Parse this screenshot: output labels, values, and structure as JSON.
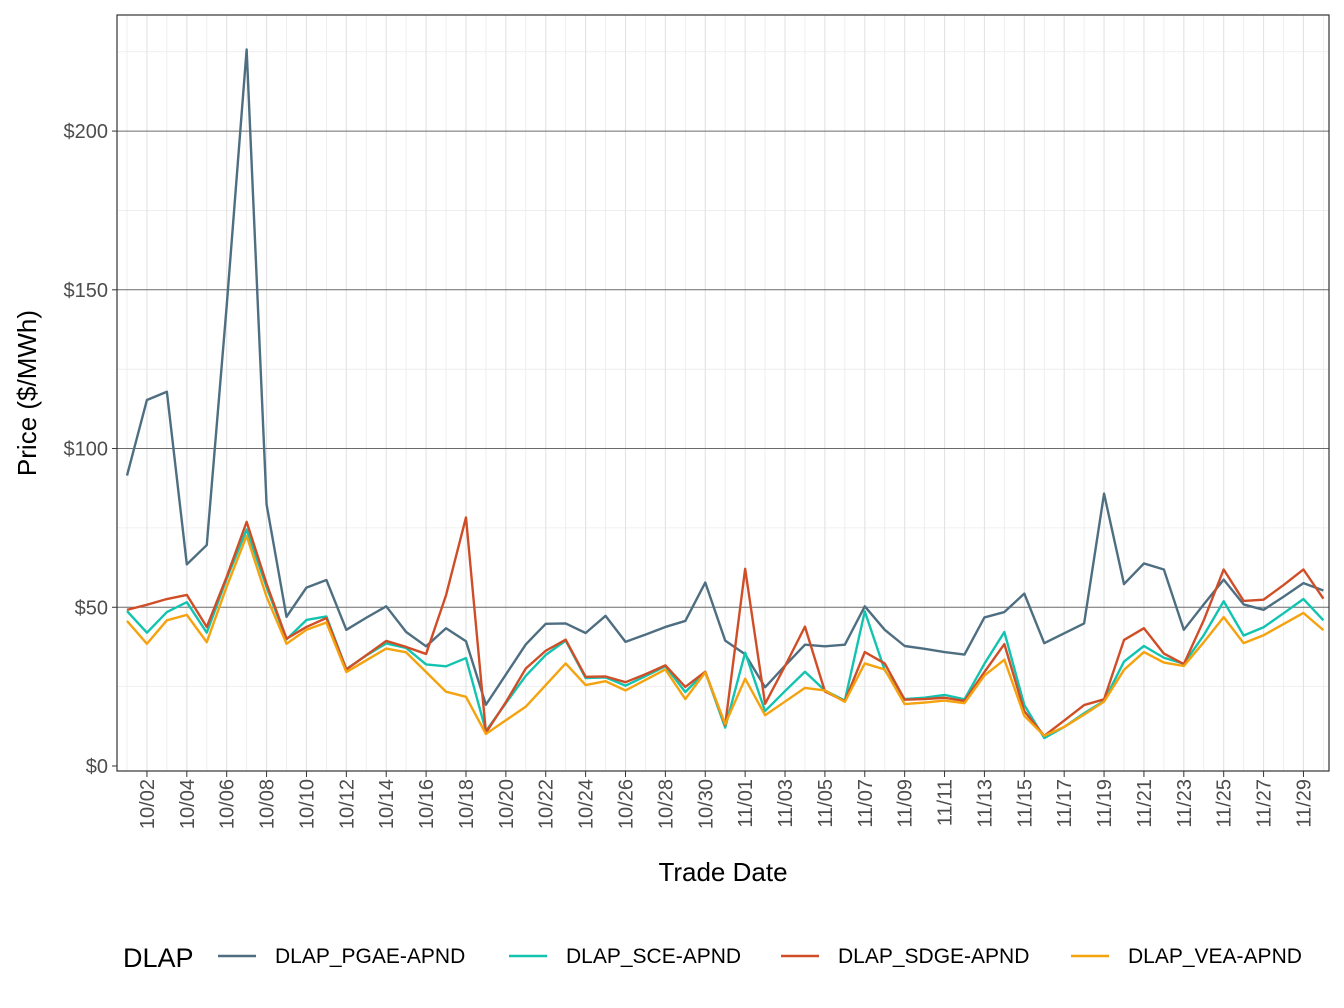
{
  "chart_data": {
    "type": "line",
    "xlabel": "Trade Date",
    "ylabel": "Price ($/MWh)",
    "x_start": "2023-10-01",
    "x_end": "2023-11-30",
    "ylim": [
      0,
      225
    ],
    "yticks": [
      0,
      50,
      100,
      150,
      200
    ],
    "ytick_labels": [
      "$0",
      "$50",
      "$100",
      "$150",
      "$200"
    ],
    "xtick_labels": [
      "10/02",
      "10/04",
      "10/06",
      "10/08",
      "10/10",
      "10/12",
      "10/14",
      "10/16",
      "10/18",
      "10/20",
      "10/22",
      "10/24",
      "10/26",
      "10/28",
      "10/30",
      "11/01",
      "11/03",
      "11/05",
      "11/07",
      "11/09",
      "11/11",
      "11/13",
      "11/15",
      "11/17",
      "11/19",
      "11/21",
      "11/23",
      "11/25",
      "11/27",
      "11/29"
    ],
    "grid": true,
    "legend": {
      "title": "DLAP",
      "position": "bottom"
    },
    "series": [
      {
        "name": "DLAP_PGAE-APND",
        "color": "#4e6e81",
        "values": [
          91.5,
          115.3,
          117.9,
          63.5,
          69.6,
          145,
          225.7,
          82.4,
          47,
          56.2,
          58.6,
          42.9,
          46.7,
          50.3,
          42.2,
          37.7,
          43.4,
          39.3,
          19.3,
          28.8,
          38.3,
          44.8,
          44.9,
          41.9,
          47.3,
          39.1,
          41.4,
          43.8,
          45.7,
          57.8,
          39.5,
          35.2,
          24.8,
          31.6,
          38.2,
          37.7,
          38.2,
          50.3,
          42.9,
          37.8,
          36.9,
          35.9,
          35.1,
          46.8,
          48.5,
          54.3,
          38.7,
          41.8,
          44.9,
          85.8,
          57.3,
          63.8,
          61.9,
          42.9,
          50.9,
          58.7,
          50.9,
          49.2,
          53.3,
          57.6,
          55.3
        ]
      },
      {
        "name": "DLAP_SCE-APND",
        "color": "#12c4b0",
        "values": [
          48.8,
          42,
          48.5,
          51.6,
          42,
          59,
          74.5,
          56.3,
          39.9,
          46,
          47.1,
          30.5,
          34.8,
          38.6,
          37.2,
          32,
          31.4,
          34,
          11,
          19.8,
          28.4,
          35,
          39.5,
          27.7,
          27.9,
          25.3,
          28.3,
          31.4,
          23.3,
          29.6,
          12.1,
          35.7,
          17.3,
          23.6,
          29.7,
          23.8,
          20.6,
          48.7,
          30.2,
          21.1,
          21.5,
          22.4,
          21,
          32.2,
          42.2,
          19.2,
          8.8,
          12.3,
          16.6,
          20.5,
          32.9,
          37.8,
          34.1,
          32.2,
          41.2,
          51.9,
          41.1,
          43.7,
          48.1,
          52.6,
          45.9
        ]
      },
      {
        "name": "DLAP_SDGE-APND",
        "color": "#d04e27",
        "values": [
          49.2,
          50.8,
          52.6,
          53.9,
          43.8,
          59.6,
          76.9,
          57.4,
          40.1,
          43.8,
          46.6,
          30.4,
          34.9,
          39.4,
          37.5,
          35.3,
          53.8,
          78.3,
          10.5,
          20.1,
          30.7,
          36.3,
          39.8,
          28.1,
          28.2,
          26.4,
          28.9,
          31.7,
          24.9,
          29.7,
          12.9,
          62.1,
          19.6,
          31.5,
          43.9,
          23.5,
          20.4,
          35.9,
          32.3,
          20.9,
          21.1,
          21.5,
          20.5,
          29.6,
          38.4,
          17.3,
          9.5,
          14.3,
          19.2,
          21,
          39.7,
          43.4,
          35.4,
          32.1,
          45.9,
          61.9,
          52,
          52.4,
          57,
          61.9,
          52.7
        ]
      },
      {
        "name": "DLAP_VEA-APND",
        "color": "#f5a20f",
        "values": [
          45.7,
          38.5,
          45.9,
          47.6,
          39,
          56.5,
          72.5,
          53.3,
          38.5,
          42.9,
          45.2,
          29.6,
          33.3,
          37,
          35.8,
          29.6,
          23.4,
          21.8,
          10.1,
          14.4,
          18.7,
          25.5,
          32.3,
          25.5,
          26.7,
          23.8,
          27.1,
          30.4,
          21.1,
          29.5,
          13.2,
          27.5,
          16,
          20.3,
          24.6,
          23.8,
          20.2,
          32.3,
          30.4,
          19.5,
          20,
          20.6,
          19.8,
          28.5,
          33.5,
          15.8,
          9.5,
          12.3,
          16.2,
          20.3,
          30.3,
          35.9,
          32.6,
          31.5,
          39,
          46.9,
          38.7,
          41.2,
          44.7,
          48.2,
          42.8
        ]
      }
    ]
  }
}
